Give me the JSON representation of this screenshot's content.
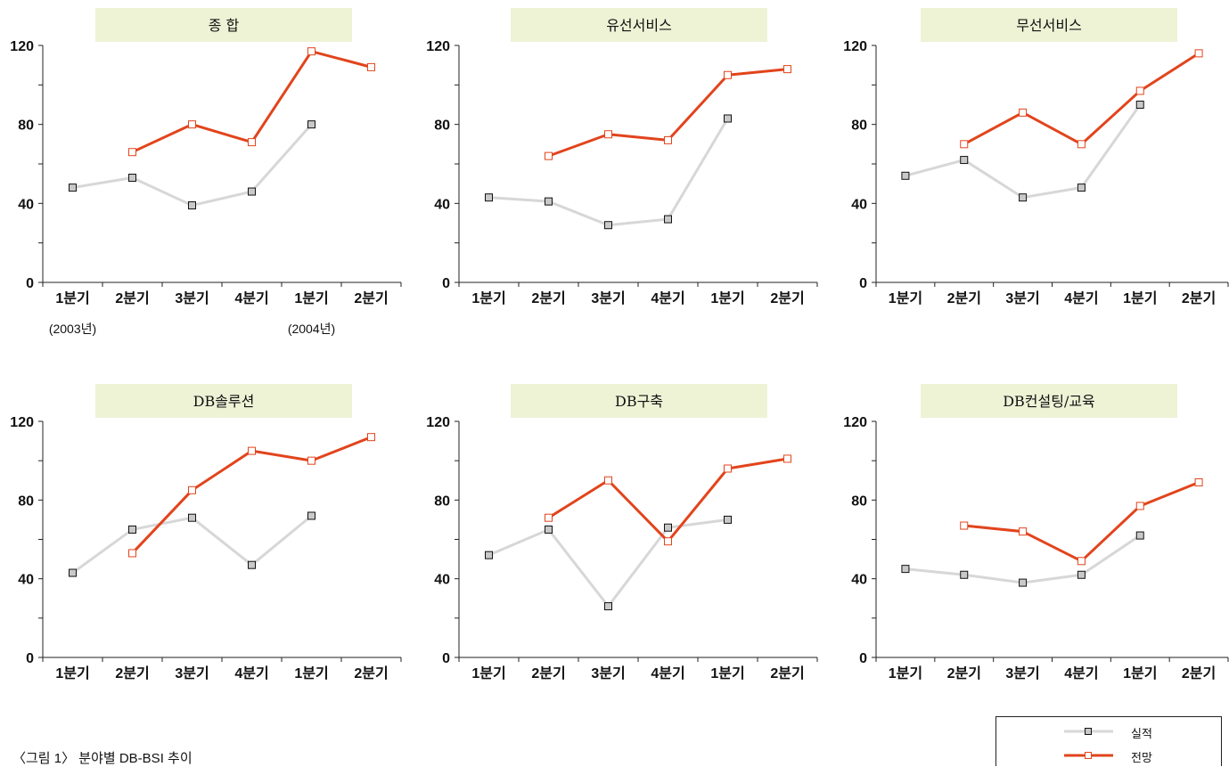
{
  "colors": {
    "actual": "#d7d7d7",
    "forecast": "#e2441c",
    "title_bg": "#eef3d6",
    "marker_actual_fill": "#c9c9c9"
  },
  "chart_data": [
    {
      "type": "line",
      "title": "종 합",
      "categories": [
        "1분기",
        "2분기",
        "3분기",
        "4분기",
        "1분기",
        "2분기"
      ],
      "year_labels": [
        "(2003년)",
        "",
        "",
        "",
        "(2004년)",
        ""
      ],
      "yticks": [
        0,
        40,
        80,
        120
      ],
      "ylim": [
        0,
        120
      ],
      "series": [
        {
          "name": "실적",
          "values": [
            48,
            53,
            39,
            46,
            80,
            null
          ]
        },
        {
          "name": "전망",
          "values": [
            null,
            66,
            80,
            71,
            117,
            109
          ]
        }
      ]
    },
    {
      "type": "line",
      "title": "유선서비스",
      "categories": [
        "1분기",
        "2분기",
        "3분기",
        "4분기",
        "1분기",
        "2분기"
      ],
      "yticks": [
        0,
        40,
        80,
        120
      ],
      "ylim": [
        0,
        120
      ],
      "series": [
        {
          "name": "실적",
          "values": [
            43,
            41,
            29,
            32,
            83,
            null
          ]
        },
        {
          "name": "전망",
          "values": [
            null,
            64,
            75,
            72,
            105,
            108
          ]
        }
      ]
    },
    {
      "type": "line",
      "title": "무선서비스",
      "categories": [
        "1분기",
        "2분기",
        "3분기",
        "4분기",
        "1분기",
        "2분기"
      ],
      "yticks": [
        0,
        40,
        80,
        120
      ],
      "ylim": [
        0,
        120
      ],
      "series": [
        {
          "name": "실적",
          "values": [
            54,
            62,
            43,
            48,
            90,
            null
          ]
        },
        {
          "name": "전망",
          "values": [
            null,
            70,
            86,
            70,
            97,
            116
          ]
        }
      ]
    },
    {
      "type": "line",
      "title": "DB솔루션",
      "categories": [
        "1분기",
        "2분기",
        "3분기",
        "4분기",
        "1분기",
        "2분기"
      ],
      "yticks": [
        0,
        40,
        80,
        120
      ],
      "ylim": [
        0,
        120
      ],
      "series": [
        {
          "name": "실적",
          "values": [
            43,
            65,
            71,
            47,
            72,
            null
          ]
        },
        {
          "name": "전망",
          "values": [
            null,
            53,
            85,
            105,
            100,
            112
          ]
        }
      ]
    },
    {
      "type": "line",
      "title": "DB구축",
      "categories": [
        "1분기",
        "2분기",
        "3분기",
        "4분기",
        "1분기",
        "2분기"
      ],
      "yticks": [
        0,
        40,
        80,
        120
      ],
      "ylim": [
        0,
        120
      ],
      "series": [
        {
          "name": "실적",
          "values": [
            52,
            65,
            26,
            66,
            70,
            null
          ]
        },
        {
          "name": "전망",
          "values": [
            null,
            71,
            90,
            59,
            96,
            101
          ]
        }
      ]
    },
    {
      "type": "line",
      "title": "DB컨설팅/교육",
      "categories": [
        "1분기",
        "2분기",
        "3분기",
        "4분기",
        "1분기",
        "2분기"
      ],
      "yticks": [
        0,
        40,
        80,
        120
      ],
      "ylim": [
        0,
        120
      ],
      "series": [
        {
          "name": "실적",
          "values": [
            45,
            42,
            38,
            42,
            62,
            null
          ]
        },
        {
          "name": "전망",
          "values": [
            null,
            67,
            64,
            49,
            77,
            89
          ]
        }
      ]
    }
  ],
  "legend": [
    {
      "label": "실적",
      "series": "actual"
    },
    {
      "label": "전망",
      "series": "forecast"
    }
  ],
  "caption": "〈그림 1〉 분야별 DB-BSI 추이"
}
